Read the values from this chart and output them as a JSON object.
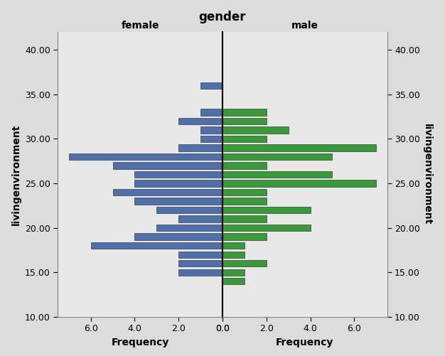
{
  "title": "gender",
  "female_label": "female",
  "male_label": "male",
  "ylabel_left": "livingenvironment",
  "ylabel_right": "livingenvironment",
  "xlabel_left": "Frequency",
  "xlabel_right": "Frequency",
  "background_color": "#dcdcdc",
  "plot_bg_color": "#e8e8e8",
  "female_color": "#4f6faa",
  "male_color": "#3a9a3a",
  "bar_edge_color": "#222222",
  "y_values": [
    36,
    35,
    34,
    33,
    32,
    31,
    30,
    29,
    28,
    27,
    26,
    25,
    24,
    23,
    22,
    21,
    20,
    19,
    18,
    17,
    16,
    15,
    14
  ],
  "female_freq": [
    1,
    0,
    0,
    1,
    2,
    1,
    1,
    2,
    7,
    5,
    4,
    4,
    5,
    4,
    3,
    2,
    3,
    4,
    6,
    2,
    2,
    2,
    0
  ],
  "male_freq": [
    0,
    0,
    0,
    2,
    2,
    3,
    2,
    7,
    5,
    2,
    5,
    7,
    2,
    2,
    4,
    2,
    4,
    2,
    1,
    1,
    2,
    1,
    1
  ],
  "ylim": [
    10,
    42
  ],
  "xlim": 7.5,
  "yticks": [
    10,
    15,
    20,
    25,
    30,
    35,
    40
  ],
  "bar_height": 0.75,
  "title_fontsize": 12,
  "label_fontsize": 10,
  "tick_fontsize": 9
}
